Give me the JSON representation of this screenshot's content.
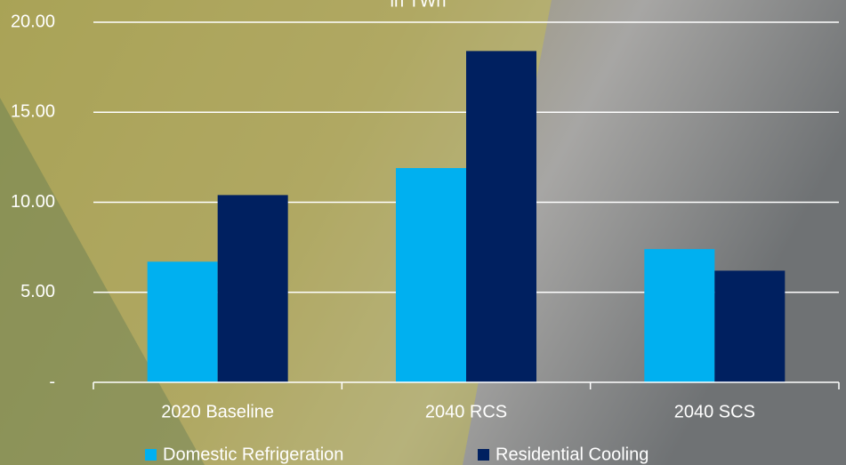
{
  "chart_data": {
    "type": "bar",
    "title": "in TWh",
    "categories": [
      "2020 Baseline",
      "2040 RCS",
      "2040 SCS"
    ],
    "series": [
      {
        "name": "Domestic Refrigeration",
        "color": "#00b0f0",
        "values": [
          6.7,
          11.9,
          7.4
        ]
      },
      {
        "name": "Residential Cooling",
        "color": "#002060",
        "values": [
          10.4,
          18.4,
          6.2
        ]
      }
    ],
    "ylim": [
      0,
      20
    ],
    "yticks": [
      {
        "value": 0,
        "label": "-"
      },
      {
        "value": 5,
        "label": "5.00"
      },
      {
        "value": 10,
        "label": "10.00"
      },
      {
        "value": 15,
        "label": "15.00"
      },
      {
        "value": 20,
        "label": "20.00"
      }
    ],
    "grid": true,
    "legend": "bottom"
  }
}
